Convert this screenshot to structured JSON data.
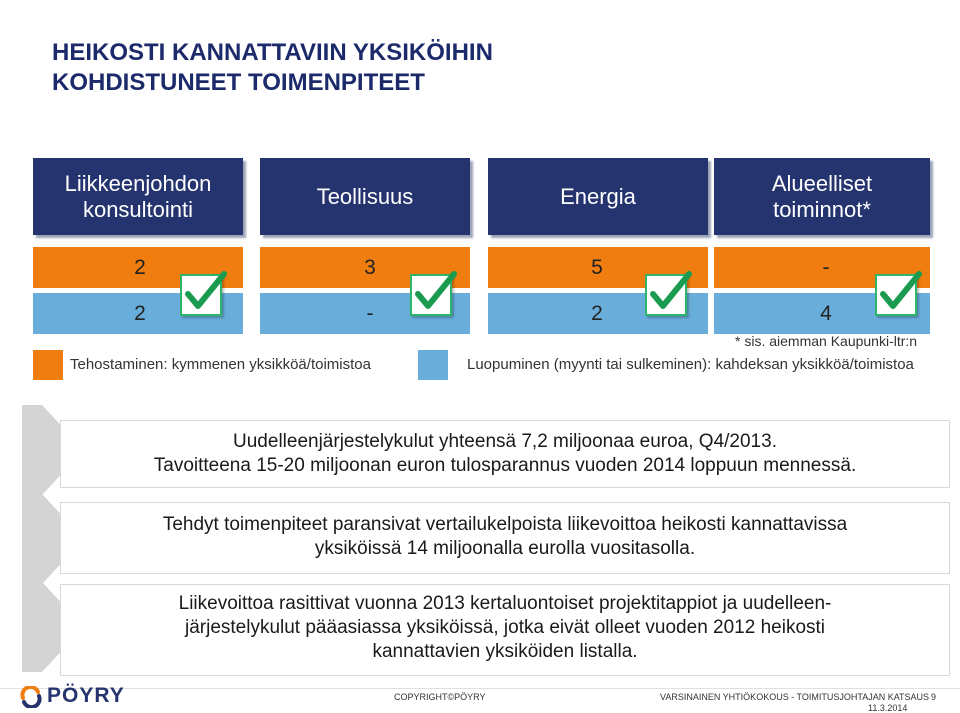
{
  "title": {
    "line1": "HEIKOSTI KANNATTAVIIN YKSIKÖIHIN",
    "line2": "KOHDISTUNEET TOIMENPITEET"
  },
  "columns": [
    {
      "header_line1": "Liikkeenjohdon",
      "header_line2": "konsultointi",
      "orange": "2",
      "blue": "2"
    },
    {
      "header_line1": "Teollisuus",
      "header_line2": "",
      "orange": "3",
      "blue": "-"
    },
    {
      "header_line1": "Energia",
      "header_line2": "",
      "orange": "5",
      "blue": "2"
    },
    {
      "header_line1": "Alueelliset",
      "header_line2": "toiminnot*",
      "orange": "-",
      "blue": "4"
    }
  ],
  "footnote": "* sis. aiemman Kaupunki-ltr:n",
  "legend": {
    "orange_label": "Tehostaminen: kymmenen yksikköä/toimistoa",
    "blue_label": "Luopuminen (myynti tai sulkeminen): kahdeksan yksikköä/toimistoa"
  },
  "points": [
    {
      "line1": "Uudelleenjärjestelykulut yhteensä 7,2 miljoonaa euroa, Q4/2013.",
      "line2": "Tavoitteena 15-20 miljoonan euron tulosparannus vuoden 2014 loppuun mennessä."
    },
    {
      "line1": "Tehdyt toimenpiteet paransivat vertailukelpoista liikevoittoa heikosti kannattavissa",
      "line2": "yksiköissä 14 miljoonalla eurolla vuositasolla."
    },
    {
      "line1": "Liikevoittoa rasittivat vuonna 2013 kertaluontoiset projektitappiot ja uudelleen-",
      "line2": "järjestelykulut pääasiassa yksiköissä, jotka eivät olleet vuoden 2012 heikosti",
      "line3": "kannattavien yksiköiden listalla."
    }
  ],
  "footer": {
    "logo_text": "PÖYRY",
    "copyright": "COPYRIGHT©PÖYRY",
    "event": "VARSINAINEN YHTIÖKOKOUS - TOIMITUSJOHTAJAN KATSAUS",
    "date": "11.3.2014",
    "page": "9"
  },
  "colors": {
    "header_navy": "#25346e",
    "orange": "#f07d10",
    "blue": "#69aedb",
    "check_green": "#2db56a",
    "title": "#1c2a6b"
  },
  "icons": {
    "check": "check-icon",
    "chevron": "chevron-right-icon",
    "logo": "poyry-logo-icon"
  }
}
